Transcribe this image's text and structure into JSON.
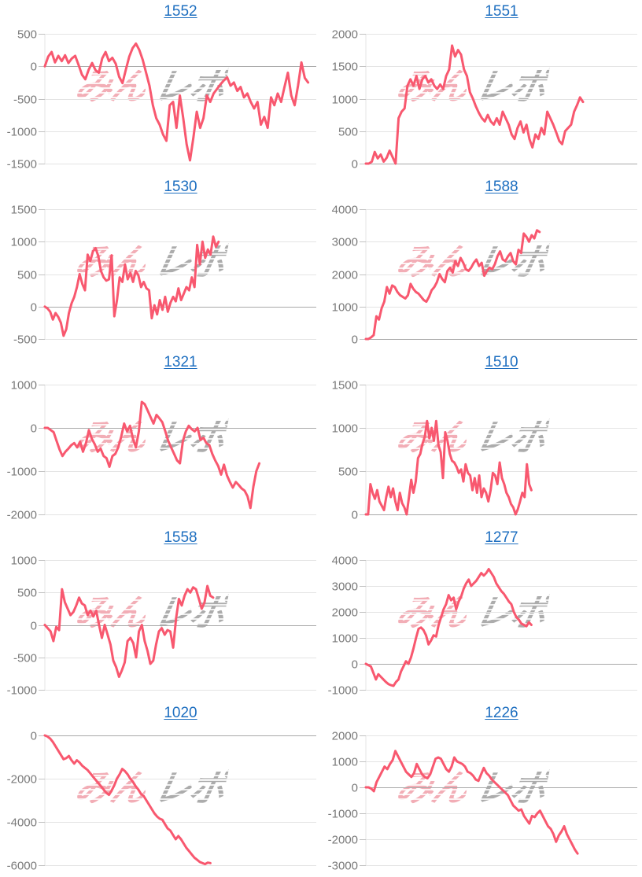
{
  "page": {
    "background": "#ffffff"
  },
  "watermark": {
    "pink": "みん",
    "gray": "レポ",
    "full_text": "みんレポ"
  },
  "style": {
    "line_color": "#f8586f",
    "title_link_color": "#1e6fc0",
    "axis_label_color": "#7a7a7a",
    "grid_color": "#e4e4e4",
    "zero_line_color": "#a8a8a8",
    "tick_color": "#c2c2c2",
    "watermark_pink": "#ee929d",
    "watermark_gray": "#9e9e9e"
  },
  "chart_data": [
    {
      "type": "line",
      "title": "1552",
      "xlabel": "",
      "ylabel": "",
      "ylim": [
        -1500,
        500
      ],
      "yticks": [
        500,
        0,
        -500,
        -1000,
        -1500
      ],
      "grid": true,
      "legend": "none",
      "x_fill": 0.97,
      "values": [
        0,
        150,
        220,
        60,
        160,
        80,
        170,
        50,
        120,
        160,
        20,
        -130,
        -200,
        -50,
        50,
        -60,
        -100,
        120,
        220,
        80,
        130,
        40,
        -160,
        -260,
        -50,
        150,
        280,
        350,
        250,
        100,
        -100,
        -300,
        -600,
        -800,
        -900,
        -1050,
        -1150,
        -600,
        -550,
        -950,
        -450,
        -800,
        -1200,
        -1450,
        -1100,
        -700,
        -950,
        -800,
        -450,
        -550,
        -420,
        -350,
        -280,
        -220,
        -170,
        -300,
        -250,
        -380,
        -320,
        -480,
        -420,
        -550,
        -650,
        -550,
        -900,
        -780,
        -950,
        -480,
        -600,
        -420,
        -550,
        -320,
        -100,
        -450,
        -600,
        -300,
        60,
        -180,
        -250
      ]
    },
    {
      "type": "line",
      "title": "1551",
      "xlabel": "",
      "ylabel": "",
      "ylim": [
        0,
        2000
      ],
      "yticks": [
        2000,
        1500,
        1000,
        500,
        0
      ],
      "grid": true,
      "legend": "none",
      "x_fill": 0.8,
      "values": [
        0,
        0,
        30,
        180,
        80,
        140,
        30,
        90,
        200,
        100,
        0,
        700,
        800,
        850,
        1200,
        1300,
        1200,
        1350,
        1150,
        1300,
        1350,
        1250,
        1300,
        1200,
        1150,
        1220,
        1150,
        1350,
        1450,
        1820,
        1650,
        1750,
        1680,
        1450,
        1350,
        1100,
        1000,
        880,
        780,
        700,
        650,
        750,
        650,
        600,
        700,
        600,
        800,
        700,
        600,
        450,
        380,
        550,
        650,
        480,
        600,
        380,
        250,
        450,
        380,
        550,
        450,
        800,
        700,
        600,
        480,
        350,
        300,
        500,
        550,
        600,
        800,
        900,
        1020,
        950
      ]
    },
    {
      "type": "line",
      "title": "1530",
      "xlabel": "",
      "ylabel": "",
      "ylim": [
        -500,
        1500
      ],
      "yticks": [
        1500,
        1000,
        500,
        0,
        -500
      ],
      "grid": true,
      "legend": "none",
      "x_fill": 0.64,
      "values": [
        0,
        -30,
        -80,
        -200,
        -100,
        -160,
        -250,
        -450,
        -350,
        -100,
        50,
        150,
        300,
        500,
        350,
        250,
        800,
        700,
        850,
        900,
        780,
        550,
        450,
        400,
        420,
        790,
        -150,
        100,
        450,
        380,
        650,
        420,
        520,
        380,
        550,
        480,
        300,
        380,
        280,
        250,
        -180,
        20,
        -120,
        100,
        -50,
        150,
        -80,
        60,
        150,
        80,
        280,
        100,
        200,
        300,
        250,
        450,
        300,
        950,
        650,
        1000,
        750,
        880,
        800,
        1080,
        920,
        1000
      ]
    },
    {
      "type": "line",
      "title": "1588",
      "xlabel": "",
      "ylabel": "",
      "ylim": [
        0,
        4000
      ],
      "yticks": [
        4000,
        3000,
        2000,
        1000,
        0
      ],
      "grid": true,
      "legend": "none",
      "x_fill": 0.64,
      "values": [
        0,
        0,
        50,
        120,
        700,
        600,
        950,
        1150,
        1600,
        1400,
        1650,
        1600,
        1450,
        1350,
        1300,
        1250,
        1350,
        1700,
        1550,
        1450,
        1400,
        1300,
        1200,
        1150,
        1300,
        1500,
        1600,
        1750,
        2000,
        1850,
        1750,
        2100,
        2200,
        2050,
        2400,
        2250,
        2500,
        2350,
        2150,
        2100,
        2200,
        2350,
        2450,
        2250,
        2350,
        1950,
        2100,
        2200,
        2150,
        2300,
        2550,
        2700,
        2450,
        2400,
        2550,
        2650,
        2400,
        2300,
        2750,
        2650,
        3250,
        3150,
        3000,
        3200,
        3100,
        3350,
        3300
      ]
    },
    {
      "type": "line",
      "title": "1321",
      "xlabel": "",
      "ylabel": "",
      "ylim": [
        -2000,
        1000
      ],
      "yticks": [
        1000,
        0,
        -1000,
        -2000
      ],
      "grid": true,
      "legend": "none",
      "x_fill": 0.79,
      "values": [
        0,
        0,
        -50,
        -100,
        -300,
        -500,
        -650,
        -550,
        -480,
        -400,
        -350,
        -450,
        -320,
        -550,
        -350,
        -50,
        -250,
        -380,
        -550,
        -480,
        -650,
        -700,
        -900,
        -650,
        -600,
        -450,
        -200,
        100,
        -80,
        50,
        -250,
        -450,
        -80,
        600,
        550,
        400,
        250,
        100,
        300,
        220,
        130,
        -80,
        -300,
        -450,
        -600,
        -750,
        -820,
        -300,
        -80,
        50,
        -30,
        -80,
        0,
        -280,
        -230,
        -350,
        -400,
        -600,
        -750,
        -880,
        -1080,
        -850,
        -1100,
        -1250,
        -1380,
        -1250,
        -1320,
        -1400,
        -1450,
        -1580,
        -1850,
        -1350,
        -1000,
        -820
      ]
    },
    {
      "type": "line",
      "title": "1510",
      "xlabel": "",
      "ylabel": "",
      "ylim": [
        0,
        1500
      ],
      "yticks": [
        1500,
        1000,
        500,
        0
      ],
      "grid": true,
      "legend": "none",
      "x_fill": 0.61,
      "values": [
        0,
        0,
        350,
        250,
        180,
        280,
        150,
        100,
        50,
        200,
        320,
        200,
        300,
        150,
        50,
        250,
        130,
        80,
        0,
        200,
        400,
        250,
        380,
        650,
        700,
        820,
        900,
        1080,
        880,
        1000,
        850,
        1080,
        800,
        720,
        420,
        950,
        850,
        700,
        620,
        600,
        550,
        480,
        520,
        380,
        580,
        480,
        450,
        280,
        420,
        250,
        450,
        200,
        300,
        250,
        150,
        280,
        480,
        450,
        350,
        600,
        420,
        350,
        250,
        200,
        120,
        80,
        0,
        60,
        150,
        250,
        200,
        580,
        350,
        280
      ]
    },
    {
      "type": "line",
      "title": "1558",
      "xlabel": "",
      "ylabel": "",
      "ylim": [
        -1000,
        1000
      ],
      "yticks": [
        1000,
        500,
        0,
        -500,
        -1000
      ],
      "grid": true,
      "legend": "none",
      "x_fill": 0.62,
      "values": [
        0,
        -50,
        -100,
        -250,
        -30,
        -80,
        550,
        350,
        250,
        150,
        200,
        300,
        420,
        330,
        300,
        150,
        220,
        130,
        220,
        0,
        -200,
        0,
        -150,
        -300,
        -550,
        -650,
        -800,
        -700,
        -580,
        -250,
        -200,
        -280,
        -500,
        -100,
        0,
        -250,
        -400,
        -600,
        -550,
        -300,
        -100,
        -50,
        -150,
        -80,
        -100,
        -350,
        100,
        400,
        300,
        450,
        550,
        500,
        580,
        550,
        400,
        250,
        350,
        600,
        450,
        420
      ]
    },
    {
      "type": "line",
      "title": "1277",
      "xlabel": "",
      "ylabel": "",
      "ylim": [
        -1000,
        4000
      ],
      "yticks": [
        4000,
        3000,
        2000,
        1000,
        0,
        -1000
      ],
      "grid": true,
      "legend": "none",
      "x_fill": 0.61,
      "values": [
        0,
        -50,
        -100,
        -350,
        -600,
        -400,
        -500,
        -600,
        -700,
        -780,
        -820,
        -850,
        -700,
        -600,
        -300,
        -100,
        100,
        0,
        250,
        600,
        1000,
        1350,
        1400,
        1300,
        1100,
        750,
        900,
        1100,
        1050,
        1500,
        1800,
        2100,
        2300,
        2650,
        2450,
        2550,
        2100,
        2400,
        2600,
        2900,
        3100,
        3250,
        3000,
        3100,
        3200,
        3350,
        3500,
        3400,
        3500,
        3650,
        3500,
        3350,
        3100,
        2950,
        2800,
        2700,
        2550,
        2400,
        2300,
        2000,
        1800,
        1700,
        1550,
        1500,
        1450,
        1600,
        1500
      ]
    },
    {
      "type": "line",
      "title": "1020",
      "xlabel": "",
      "ylabel": "",
      "ylim": [
        -6000,
        0
      ],
      "yticks": [
        0,
        -2000,
        -4000,
        -6000
      ],
      "grid": true,
      "legend": "none",
      "x_fill": 0.61,
      "values": [
        0,
        -50,
        -150,
        -300,
        -500,
        -700,
        -900,
        -1100,
        -1050,
        -950,
        -1150,
        -1300,
        -1150,
        -1250,
        -1400,
        -1500,
        -1600,
        -1750,
        -1900,
        -2050,
        -2200,
        -2350,
        -2500,
        -2650,
        -2750,
        -2550,
        -2300,
        -2000,
        -1800,
        -1550,
        -1650,
        -1800,
        -2000,
        -2150,
        -2350,
        -2500,
        -2700,
        -2800,
        -3000,
        -3200,
        -3400,
        -3600,
        -3750,
        -3850,
        -3900,
        -4100,
        -4300,
        -4400,
        -4600,
        -4800,
        -4650,
        -4800,
        -5000,
        -5200,
        -5350,
        -5500,
        -5650,
        -5750,
        -5850,
        -5900,
        -5950,
        -5880,
        -5900
      ]
    },
    {
      "type": "line",
      "title": "1226",
      "xlabel": "",
      "ylabel": "",
      "ylim": [
        -3000,
        2000
      ],
      "yticks": [
        2000,
        1000,
        0,
        -1000,
        -2000,
        -3000
      ],
      "grid": true,
      "legend": "none",
      "x_fill": 0.78,
      "values": [
        0,
        0,
        -50,
        -150,
        200,
        400,
        600,
        800,
        700,
        900,
        1050,
        1400,
        1200,
        1000,
        800,
        600,
        500,
        400,
        550,
        900,
        700,
        500,
        400,
        350,
        500,
        800,
        1100,
        1150,
        1100,
        900,
        700,
        600,
        800,
        1150,
        1000,
        950,
        900,
        800,
        600,
        550,
        450,
        300,
        250,
        500,
        750,
        550,
        450,
        300,
        200,
        100,
        0,
        -100,
        -200,
        -300,
        -500,
        -700,
        -800,
        -900,
        -850,
        -1100,
        -1250,
        -1400,
        -1100,
        -1150,
        -1000,
        -900,
        -1100,
        -1300,
        -1500,
        -1600,
        -1800,
        -2100,
        -1850,
        -1700,
        -1500,
        -1800,
        -2000,
        -2200,
        -2400,
        -2550
      ]
    }
  ]
}
